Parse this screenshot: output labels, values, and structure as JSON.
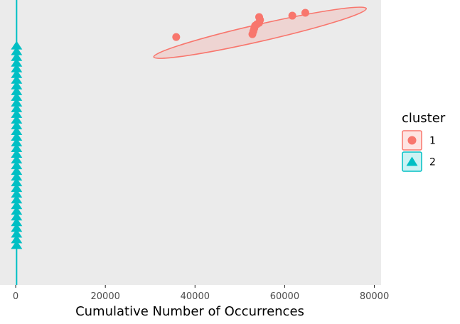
{
  "chart_data": {
    "type": "scatter",
    "title": "",
    "xlabel": "Cumulative Number of Occurrences",
    "ylabel": "",
    "xlim": [
      -3500,
      81500
    ],
    "x_ticks": [
      "0",
      "20000",
      "40000",
      "60000",
      "80000"
    ],
    "x_tick_values": [
      0,
      20000,
      40000,
      60000,
      80000
    ],
    "y_axis_visible": false,
    "grid": false,
    "panel_background": "#ebebeb",
    "legend": {
      "title": "cluster",
      "placement": "right"
    },
    "series": [
      {
        "name": "1",
        "marker": "circle",
        "color": "#f8766d",
        "points": [
          [
            35800,
            0.87
          ],
          [
            52800,
            0.88
          ],
          [
            53000,
            0.89
          ],
          [
            53200,
            0.9
          ],
          [
            53400,
            0.91
          ],
          [
            53800,
            0.915
          ],
          [
            54300,
            0.92
          ],
          [
            54500,
            0.93
          ],
          [
            54300,
            0.94
          ],
          [
            61700,
            0.945
          ],
          [
            64600,
            0.955
          ]
        ],
        "ellipse": {
          "center": [
            54500,
            0.885
          ],
          "x_range": [
            30800,
            78200
          ],
          "y_range": [
            0.8,
            0.97
          ]
        }
      },
      {
        "name": "2",
        "marker": "triangle",
        "color": "#00bfc4",
        "points": [
          [
            200,
            0.14
          ],
          [
            200,
            0.16
          ],
          [
            200,
            0.18
          ],
          [
            200,
            0.2
          ],
          [
            200,
            0.22
          ],
          [
            200,
            0.24
          ],
          [
            200,
            0.26
          ],
          [
            200,
            0.28
          ],
          [
            200,
            0.3
          ],
          [
            200,
            0.32
          ],
          [
            200,
            0.34
          ],
          [
            200,
            0.36
          ],
          [
            200,
            0.38
          ],
          [
            200,
            0.4
          ],
          [
            200,
            0.42
          ],
          [
            200,
            0.44
          ],
          [
            200,
            0.46
          ],
          [
            200,
            0.48
          ],
          [
            200,
            0.5
          ],
          [
            200,
            0.52
          ],
          [
            200,
            0.54
          ],
          [
            200,
            0.56
          ],
          [
            200,
            0.58
          ],
          [
            200,
            0.6
          ],
          [
            200,
            0.62
          ],
          [
            200,
            0.64
          ],
          [
            200,
            0.66
          ],
          [
            200,
            0.68
          ],
          [
            200,
            0.7
          ],
          [
            200,
            0.72
          ],
          [
            200,
            0.74
          ],
          [
            200,
            0.76
          ],
          [
            200,
            0.78
          ],
          [
            200,
            0.8
          ],
          [
            200,
            0.82
          ],
          [
            200,
            0.84
          ]
        ],
        "ellipse": {
          "center": [
            200,
            0.5
          ],
          "x_range": [
            150,
            250
          ],
          "y_range": [
            -0.2,
            1.2
          ]
        }
      }
    ]
  }
}
